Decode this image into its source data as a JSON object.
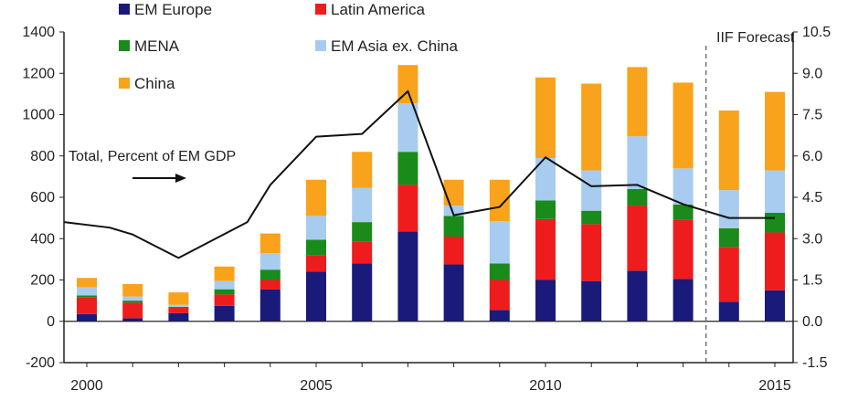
{
  "chart_data": {
    "type": "bar",
    "subtype": "stacked bar with line overlay",
    "x": [
      2000,
      2001,
      2002,
      2003,
      2004,
      2005,
      2006,
      2007,
      2008,
      2009,
      2010,
      2011,
      2012,
      2013,
      2014,
      2015
    ],
    "x_ticks": [
      "2000",
      "2005",
      "2010",
      "2015"
    ],
    "series": [
      {
        "name": "EM Europe",
        "color": "#1a1a7a",
        "values": [
          35,
          15,
          40,
          75,
          155,
          240,
          280,
          435,
          275,
          55,
          200,
          195,
          245,
          205,
          95,
          150
        ]
      },
      {
        "name": "Latin America",
        "color": "#ee1c1c",
        "values": [
          80,
          75,
          25,
          55,
          45,
          80,
          105,
          225,
          135,
          145,
          295,
          275,
          315,
          285,
          265,
          280
        ]
      },
      {
        "name": "MENA",
        "color": "#1a8a1a",
        "values": [
          10,
          10,
          5,
          25,
          50,
          75,
          95,
          160,
          100,
          80,
          90,
          65,
          80,
          75,
          90,
          95
        ]
      },
      {
        "name": "EM Asia ex. China",
        "color": "#a8ccf0",
        "values": [
          40,
          20,
          10,
          40,
          80,
          115,
          165,
          235,
          50,
          205,
          205,
          195,
          255,
          175,
          185,
          205
        ]
      },
      {
        "name": "China",
        "color": "#f9a21b",
        "values": [
          45,
          60,
          60,
          70,
          95,
          175,
          175,
          185,
          125,
          200,
          390,
          420,
          335,
          415,
          385,
          380
        ]
      },
      {
        "name": "Total, Percent of EM GDP",
        "type": "line",
        "axis": "right",
        "color": "#111111",
        "values": [
          3.6,
          3.4,
          3.15,
          2.3,
          3.6,
          4.95,
          6.7,
          6.8,
          8.35,
          3.85,
          4.15,
          5.95,
          4.9,
          4.95,
          4.25,
          3.75,
          3.75
        ],
        "x": [
          1999.5,
          2000.5,
          2001,
          2002,
          2003.5,
          2004,
          2005,
          2006,
          2007,
          2008,
          2009,
          2010,
          2011,
          2012,
          2013,
          2014,
          2015
        ]
      }
    ],
    "y_left": {
      "ticks": [
        "-200",
        "0",
        "200",
        "400",
        "600",
        "800",
        "1000",
        "1200",
        "1400"
      ],
      "range": [
        -200,
        1400
      ]
    },
    "y_right": {
      "ticks": [
        "-1.5",
        "0.0",
        "1.5",
        "3.0",
        "4.5",
        "6.0",
        "7.5",
        "9.0",
        "10.5"
      ],
      "range": [
        -1.5,
        10.5
      ]
    },
    "annotations": {
      "line_label": "Total, Percent of EM GDP",
      "forecast_label": "IIF Forecast",
      "arrow": "→"
    },
    "forecast_divider_x": 2013.5,
    "legend": {
      "placement": "top-left",
      "columns": 2
    },
    "grid": false
  }
}
